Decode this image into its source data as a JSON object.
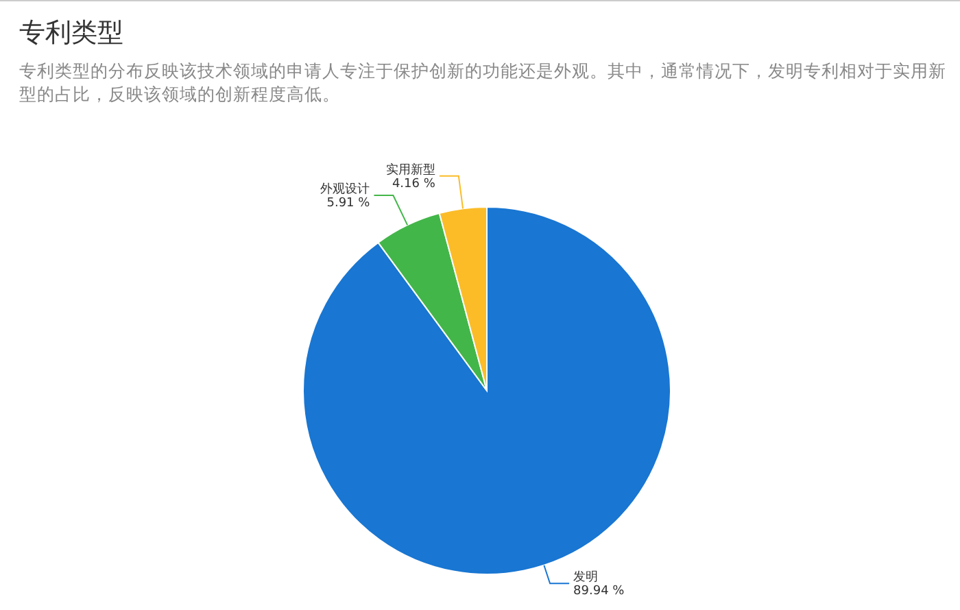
{
  "chart_data": {
    "type": "pie",
    "title": "专利类型",
    "subtitle": "专利类型的分布反映该技术领域的申请人专注于保护创新的功能还是外观。其中，通常情况下，发明专利相对于实用新型的占比，反映该领域的创新程度高低。",
    "categories": [
      "发明",
      "外观设计",
      "实用新型"
    ],
    "values": [
      89.94,
      5.91,
      4.16
    ],
    "colors": [
      "#1976d2",
      "#43b649",
      "#fbbc28"
    ],
    "value_labels": [
      "89.94 %",
      "5.91 %",
      "4.16 %"
    ]
  }
}
